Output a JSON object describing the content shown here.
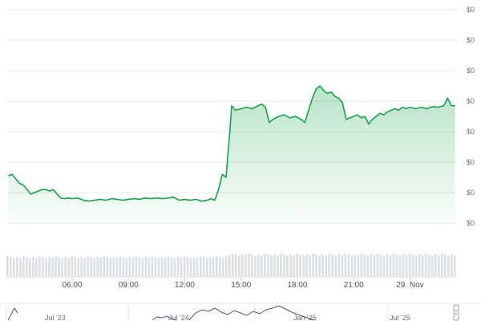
{
  "chart_data": {
    "type": "area",
    "title": "",
    "xlabel": "",
    "ylabel": "",
    "grid": true,
    "line_color": "#16a34a",
    "fill_color": "#16a34a",
    "volume_color": "#9ca3af",
    "navigator_color": "#3b5b8c",
    "x_range": [
      2.5,
      26.5
    ],
    "x_ticks": [
      {
        "x": 6,
        "label": "06:00"
      },
      {
        "x": 9,
        "label": "09:00"
      },
      {
        "x": 12,
        "label": "12:00"
      },
      {
        "x": 15,
        "label": "15:00"
      },
      {
        "x": 18,
        "label": "18:00"
      },
      {
        "x": 21,
        "label": "21:00"
      },
      {
        "x": 24,
        "label": "29. Nov"
      }
    ],
    "y_ticks": [
      "$0",
      "$0",
      "$0",
      "$0",
      "$0",
      "$0",
      "$0",
      "$0"
    ],
    "navigator_labels": [
      "Jul '23",
      "Jul '24",
      "Jan '25",
      "Jul '25"
    ],
    "series": [
      {
        "values": [
          [
            2.6,
            1.55
          ],
          [
            2.8,
            1.6
          ],
          [
            3.0,
            1.45
          ],
          [
            3.2,
            1.3
          ],
          [
            3.4,
            1.25
          ],
          [
            3.6,
            1.1
          ],
          [
            3.8,
            0.95
          ],
          [
            4.0,
            1.0
          ],
          [
            4.2,
            1.05
          ],
          [
            4.4,
            1.1
          ],
          [
            4.6,
            1.1
          ],
          [
            4.8,
            1.05
          ],
          [
            5.0,
            1.1
          ],
          [
            5.2,
            0.95
          ],
          [
            5.4,
            0.82
          ],
          [
            5.6,
            0.8
          ],
          [
            5.8,
            0.82
          ],
          [
            6.0,
            0.8
          ],
          [
            6.3,
            0.82
          ],
          [
            6.6,
            0.75
          ],
          [
            6.9,
            0.72
          ],
          [
            7.2,
            0.75
          ],
          [
            7.5,
            0.78
          ],
          [
            7.8,
            0.75
          ],
          [
            8.1,
            0.8
          ],
          [
            8.4,
            0.78
          ],
          [
            8.7,
            0.75
          ],
          [
            9.0,
            0.78
          ],
          [
            9.3,
            0.8
          ],
          [
            9.6,
            0.78
          ],
          [
            9.9,
            0.82
          ],
          [
            10.2,
            0.8
          ],
          [
            10.5,
            0.82
          ],
          [
            10.8,
            0.8
          ],
          [
            11.1,
            0.82
          ],
          [
            11.4,
            0.85
          ],
          [
            11.7,
            0.75
          ],
          [
            12.0,
            0.78
          ],
          [
            12.3,
            0.75
          ],
          [
            12.6,
            0.78
          ],
          [
            12.9,
            0.72
          ],
          [
            13.2,
            0.75
          ],
          [
            13.4,
            0.8
          ],
          [
            13.6,
            0.75
          ],
          [
            13.8,
            1.1
          ],
          [
            14.0,
            1.6
          ],
          [
            14.2,
            1.5
          ],
          [
            14.4,
            3.0
          ],
          [
            14.5,
            3.85
          ],
          [
            14.7,
            3.7
          ],
          [
            15.0,
            3.75
          ],
          [
            15.3,
            3.8
          ],
          [
            15.6,
            3.75
          ],
          [
            15.9,
            3.85
          ],
          [
            16.1,
            3.9
          ],
          [
            16.3,
            3.8
          ],
          [
            16.5,
            3.3
          ],
          [
            16.7,
            3.4
          ],
          [
            17.0,
            3.5
          ],
          [
            17.3,
            3.55
          ],
          [
            17.6,
            3.45
          ],
          [
            17.9,
            3.5
          ],
          [
            18.2,
            3.4
          ],
          [
            18.4,
            3.3
          ],
          [
            18.6,
            3.7
          ],
          [
            18.8,
            4.1
          ],
          [
            19.0,
            4.4
          ],
          [
            19.2,
            4.5
          ],
          [
            19.4,
            4.35
          ],
          [
            19.6,
            4.25
          ],
          [
            19.8,
            4.3
          ],
          [
            20.0,
            4.15
          ],
          [
            20.2,
            4.1
          ],
          [
            20.4,
            3.95
          ],
          [
            20.6,
            3.4
          ],
          [
            20.8,
            3.45
          ],
          [
            21.0,
            3.5
          ],
          [
            21.2,
            3.55
          ],
          [
            21.4,
            3.45
          ],
          [
            21.6,
            3.5
          ],
          [
            21.8,
            3.25
          ],
          [
            22.0,
            3.4
          ],
          [
            22.2,
            3.5
          ],
          [
            22.4,
            3.6
          ],
          [
            22.6,
            3.55
          ],
          [
            22.8,
            3.65
          ],
          [
            23.0,
            3.7
          ],
          [
            23.2,
            3.75
          ],
          [
            23.4,
            3.7
          ],
          [
            23.6,
            3.8
          ],
          [
            23.8,
            3.75
          ],
          [
            24.0,
            3.8
          ],
          [
            24.3,
            3.75
          ],
          [
            24.6,
            3.8
          ],
          [
            24.9,
            3.75
          ],
          [
            25.2,
            3.82
          ],
          [
            25.5,
            3.8
          ],
          [
            25.8,
            3.85
          ],
          [
            26.0,
            4.1
          ],
          [
            26.2,
            3.85
          ],
          [
            26.4,
            3.85
          ]
        ]
      }
    ]
  }
}
